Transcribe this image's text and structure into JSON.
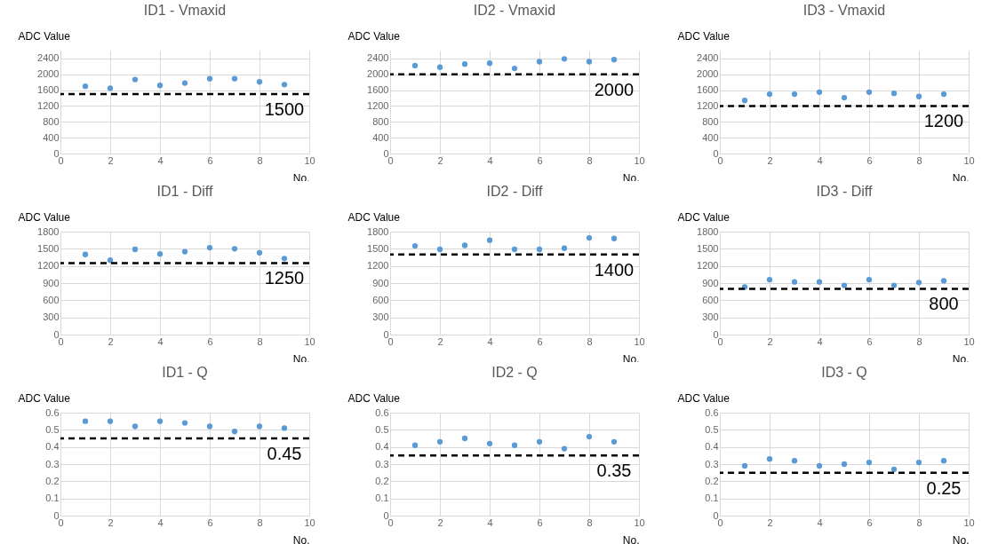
{
  "chart_data": [
    {
      "type": "scatter",
      "title": "ID1 - Vmaxid",
      "xlabel": "No.",
      "ylabel": "ADC Value",
      "x": [
        1,
        2,
        3,
        4,
        5,
        6,
        7,
        8,
        9
      ],
      "xlim": [
        0,
        10
      ],
      "xticks": [
        0,
        2,
        4,
        6,
        8,
        10
      ],
      "ylim": [
        0,
        2600
      ],
      "yticks": [
        0,
        400,
        800,
        1200,
        1600,
        2000,
        2400
      ],
      "grid": true,
      "marker": "circle",
      "series": [
        {
          "color": "#5b9bd5",
          "values": [
            1700,
            1650,
            1870,
            1720,
            1780,
            1890,
            1890,
            1810,
            1740
          ]
        }
      ],
      "ref_lines": [
        {
          "axis": "y",
          "value": 1500,
          "label": "1500",
          "color": "#000000",
          "line_style": "dashed"
        }
      ]
    },
    {
      "type": "scatter",
      "title": "ID2 - Vmaxid",
      "xlabel": "No.",
      "ylabel": "ADC Value",
      "x": [
        1,
        2,
        3,
        4,
        5,
        6,
        7,
        8,
        9
      ],
      "xlim": [
        0,
        10
      ],
      "xticks": [
        0,
        2,
        4,
        6,
        8,
        10
      ],
      "ylim": [
        0,
        2600
      ],
      "yticks": [
        0,
        400,
        800,
        1200,
        1600,
        2000,
        2400
      ],
      "grid": true,
      "marker": "circle",
      "series": [
        {
          "color": "#5b9bd5",
          "values": [
            2220,
            2180,
            2260,
            2280,
            2150,
            2320,
            2390,
            2320,
            2370
          ]
        }
      ],
      "ref_lines": [
        {
          "axis": "y",
          "value": 2000,
          "label": "2000",
          "color": "#000000",
          "line_style": "dashed"
        }
      ]
    },
    {
      "type": "scatter",
      "title": "ID3 - Vmaxid",
      "xlabel": "No.",
      "ylabel": "ADC Value",
      "x": [
        1,
        2,
        3,
        4,
        5,
        6,
        7,
        8,
        9
      ],
      "xlim": [
        0,
        10
      ],
      "xticks": [
        0,
        2,
        4,
        6,
        8,
        10
      ],
      "ylim": [
        0,
        2600
      ],
      "yticks": [
        0,
        400,
        800,
        1200,
        1600,
        2000,
        2400
      ],
      "grid": true,
      "marker": "circle",
      "series": [
        {
          "color": "#5b9bd5",
          "values": [
            1340,
            1500,
            1500,
            1550,
            1410,
            1550,
            1520,
            1440,
            1500
          ]
        }
      ],
      "ref_lines": [
        {
          "axis": "y",
          "value": 1200,
          "label": "1200",
          "color": "#000000",
          "line_style": "dashed"
        }
      ]
    },
    {
      "type": "scatter",
      "title": "ID1 - Diff",
      "xlabel": "No.",
      "ylabel": "ADC Value",
      "x": [
        1,
        2,
        3,
        4,
        5,
        6,
        7,
        8,
        9
      ],
      "xlim": [
        0,
        10
      ],
      "xticks": [
        0,
        2,
        4,
        6,
        8,
        10
      ],
      "ylim": [
        0,
        1800
      ],
      "yticks": [
        0,
        300,
        600,
        900,
        1200,
        1500,
        1800
      ],
      "grid": true,
      "marker": "circle",
      "series": [
        {
          "color": "#5b9bd5",
          "values": [
            1400,
            1300,
            1490,
            1410,
            1450,
            1520,
            1500,
            1430,
            1330
          ]
        }
      ],
      "ref_lines": [
        {
          "axis": "y",
          "value": 1250,
          "label": "1250",
          "color": "#000000",
          "line_style": "dashed"
        }
      ]
    },
    {
      "type": "scatter",
      "title": "ID2 - Diff",
      "xlabel": "No.",
      "ylabel": "ADC Value",
      "x": [
        1,
        2,
        3,
        4,
        5,
        6,
        7,
        8,
        9
      ],
      "xlim": [
        0,
        10
      ],
      "xticks": [
        0,
        2,
        4,
        6,
        8,
        10
      ],
      "ylim": [
        0,
        1800
      ],
      "yticks": [
        0,
        300,
        600,
        900,
        1200,
        1500,
        1800
      ],
      "grid": true,
      "marker": "circle",
      "series": [
        {
          "color": "#5b9bd5",
          "values": [
            1550,
            1490,
            1560,
            1650,
            1490,
            1490,
            1510,
            1690,
            1680
          ]
        }
      ],
      "ref_lines": [
        {
          "axis": "y",
          "value": 1400,
          "label": "1400",
          "color": "#000000",
          "line_style": "dashed"
        }
      ]
    },
    {
      "type": "scatter",
      "title": "ID3 - Diff",
      "xlabel": "No.",
      "ylabel": "ADC Value",
      "x": [
        1,
        2,
        3,
        4,
        5,
        6,
        7,
        8,
        9
      ],
      "xlim": [
        0,
        10
      ],
      "xticks": [
        0,
        2,
        4,
        6,
        8,
        10
      ],
      "ylim": [
        0,
        1800
      ],
      "yticks": [
        0,
        300,
        600,
        900,
        1200,
        1500,
        1800
      ],
      "grid": true,
      "marker": "circle",
      "series": [
        {
          "color": "#5b9bd5",
          "values": [
            830,
            960,
            920,
            920,
            860,
            960,
            860,
            910,
            940
          ]
        }
      ],
      "ref_lines": [
        {
          "axis": "y",
          "value": 800,
          "label": "800",
          "color": "#000000",
          "line_style": "dashed"
        }
      ]
    },
    {
      "type": "scatter",
      "title": "ID1 - Q",
      "xlabel": "No.",
      "ylabel": "ADC Value",
      "x": [
        1,
        2,
        3,
        4,
        5,
        6,
        7,
        8,
        9
      ],
      "xlim": [
        0,
        10
      ],
      "xticks": [
        0,
        2,
        4,
        6,
        8,
        10
      ],
      "ylim": [
        0,
        0.6
      ],
      "yticks": [
        0,
        0.1,
        0.2,
        0.3,
        0.4,
        0.5,
        0.6
      ],
      "grid": true,
      "marker": "circle",
      "series": [
        {
          "color": "#5b9bd5",
          "values": [
            0.55,
            0.55,
            0.52,
            0.55,
            0.54,
            0.52,
            0.49,
            0.52,
            0.51
          ]
        }
      ],
      "ref_lines": [
        {
          "axis": "y",
          "value": 0.45,
          "label": "0.45",
          "color": "#000000",
          "line_style": "dashed"
        }
      ]
    },
    {
      "type": "scatter",
      "title": "ID2 - Q",
      "xlabel": "No.",
      "ylabel": "ADC Value",
      "x": [
        1,
        2,
        3,
        4,
        5,
        6,
        7,
        8,
        9
      ],
      "xlim": [
        0,
        10
      ],
      "xticks": [
        0,
        2,
        4,
        6,
        8,
        10
      ],
      "ylim": [
        0,
        0.6
      ],
      "yticks": [
        0,
        0.1,
        0.2,
        0.3,
        0.4,
        0.5,
        0.6
      ],
      "grid": true,
      "marker": "circle",
      "series": [
        {
          "color": "#5b9bd5",
          "values": [
            0.41,
            0.43,
            0.45,
            0.42,
            0.41,
            0.43,
            0.39,
            0.46,
            0.43
          ]
        }
      ],
      "ref_lines": [
        {
          "axis": "y",
          "value": 0.35,
          "label": "0.35",
          "color": "#000000",
          "line_style": "dashed"
        }
      ]
    },
    {
      "type": "scatter",
      "title": "ID3 - Q",
      "xlabel": "No.",
      "ylabel": "ADC Value",
      "x": [
        1,
        2,
        3,
        4,
        5,
        6,
        7,
        8,
        9
      ],
      "xlim": [
        0,
        10
      ],
      "xticks": [
        0,
        2,
        4,
        6,
        8,
        10
      ],
      "ylim": [
        0,
        0.6
      ],
      "yticks": [
        0,
        0.1,
        0.2,
        0.3,
        0.4,
        0.5,
        0.6
      ],
      "grid": true,
      "marker": "circle",
      "series": [
        {
          "color": "#5b9bd5",
          "values": [
            0.29,
            0.33,
            0.32,
            0.29,
            0.3,
            0.31,
            0.27,
            0.31,
            0.32
          ]
        }
      ],
      "ref_lines": [
        {
          "axis": "y",
          "value": 0.25,
          "label": "0.25",
          "color": "#000000",
          "line_style": "dashed"
        }
      ]
    }
  ]
}
